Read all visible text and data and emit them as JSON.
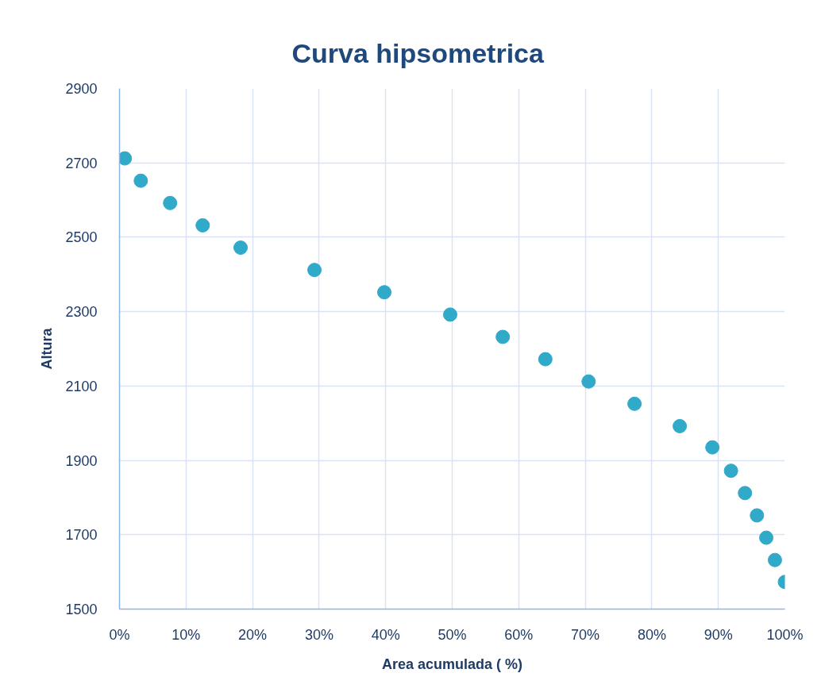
{
  "chart_data": {
    "type": "scatter",
    "title": "Curva hipsometrica",
    "xlabel": "Area acumulada ( %)",
    "ylabel": "Altura",
    "x": [
      0.8,
      3.2,
      7.6,
      12.5,
      18.2,
      29.3,
      39.8,
      49.7,
      57.6,
      64.0,
      70.5,
      77.4,
      84.2,
      89.1,
      91.9,
      94.0,
      95.8,
      97.2,
      98.5,
      100
    ],
    "series": [
      {
        "color": "#31a9c9",
        "values": [
          2712,
          2652,
          2592,
          2532,
          2472,
          2412,
          2352,
          2292,
          2232,
          2172,
          2112,
          2052,
          1992,
          1935,
          1872,
          1812,
          1752,
          1692,
          1632,
          1573
        ]
      }
    ],
    "xlim": [
      0,
      100
    ],
    "xticks": [
      {
        "value": 0,
        "label": "0%"
      },
      {
        "value": 10,
        "label": "10%"
      },
      {
        "value": 20,
        "label": "20%"
      },
      {
        "value": 30,
        "label": "30%"
      },
      {
        "value": 40,
        "label": "40%"
      },
      {
        "value": 50,
        "label": "50%"
      },
      {
        "value": 60,
        "label": "60%"
      },
      {
        "value": 70,
        "label": "70%"
      },
      {
        "value": 80,
        "label": "80%"
      },
      {
        "value": 90,
        "label": "90%"
      },
      {
        "value": 100,
        "label": "100%"
      }
    ],
    "ylim": [
      1500,
      2900
    ],
    "yticks": [
      1500,
      1700,
      1900,
      2100,
      2300,
      2500,
      2700,
      2900
    ],
    "grid": true,
    "marker": "circle"
  }
}
